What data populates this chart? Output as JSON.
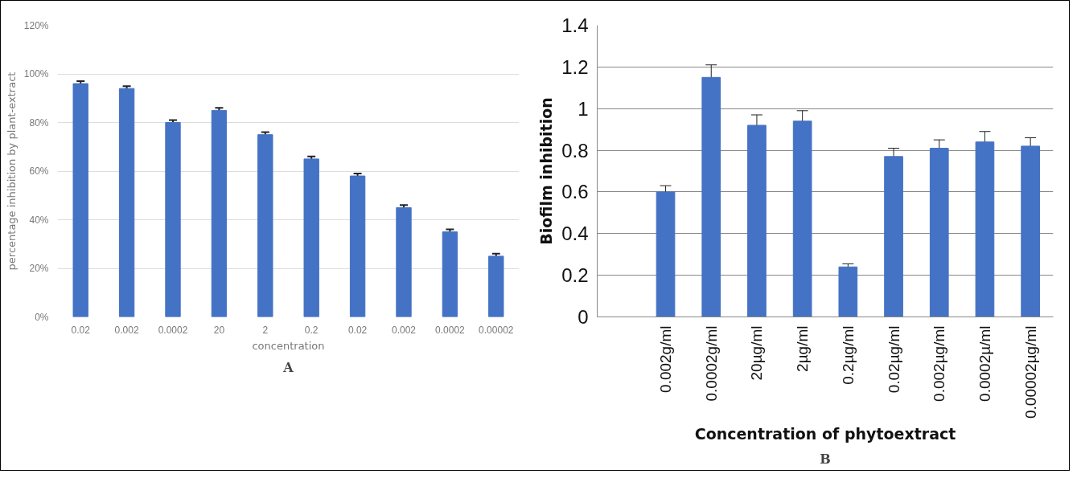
{
  "chart_data": [
    {
      "type": "bar",
      "xlabel": "concentration",
      "ylabel": "percentage inhibition by plant-extract",
      "categories": [
        "0.02",
        "0.002",
        "0.0002",
        "20",
        "2",
        "0.2",
        "0.02",
        "0.002",
        "0.0002",
        "0.00002"
      ],
      "series": [
        {
          "color": "#4472c4",
          "values": [
            96,
            94,
            80,
            85,
            75,
            65,
            58,
            45,
            35,
            25
          ],
          "errors": [
            1,
            1,
            1,
            1,
            1,
            1,
            1,
            1,
            1,
            1
          ]
        }
      ],
      "ylim": [
        0,
        120
      ],
      "yticks": [
        {
          "value": 0,
          "label": "0%"
        },
        {
          "value": 20,
          "label": "20%"
        },
        {
          "value": 40,
          "label": "40%"
        },
        {
          "value": 60,
          "label": "60%"
        },
        {
          "value": 80,
          "label": "80%"
        },
        {
          "value": 100,
          "label": "100%"
        },
        {
          "value": 120,
          "label": "120%"
        }
      ],
      "grid": "y",
      "annotations": [
        "A"
      ]
    },
    {
      "type": "bar",
      "xlabel": "Concentration of phytoextract",
      "ylabel": "Biofilm inhibition",
      "categories": [
        null,
        "0.002g/ml",
        "0.0002g/ml",
        "20µg/ml",
        "2µg/ml",
        "0.2µg/ml",
        "0.02µg/ml",
        "0.002µg/ml",
        "0.0002µ/ml",
        "0.00002µg/ml"
      ],
      "series": [
        {
          "color": "#4472c4",
          "values": [
            null,
            0.6,
            1.15,
            0.92,
            0.94,
            0.24,
            0.77,
            0.81,
            0.84,
            0.82
          ],
          "errors": [
            null,
            0.03,
            0.06,
            0.05,
            0.05,
            0.015,
            0.04,
            0.04,
            0.05,
            0.04
          ]
        }
      ],
      "ylim": [
        0,
        1.4
      ],
      "yticks": [
        0,
        0.2,
        0.4,
        0.6,
        0.8,
        1,
        1.2,
        1.4
      ],
      "grid": "y",
      "annotations": [
        "B"
      ]
    }
  ]
}
